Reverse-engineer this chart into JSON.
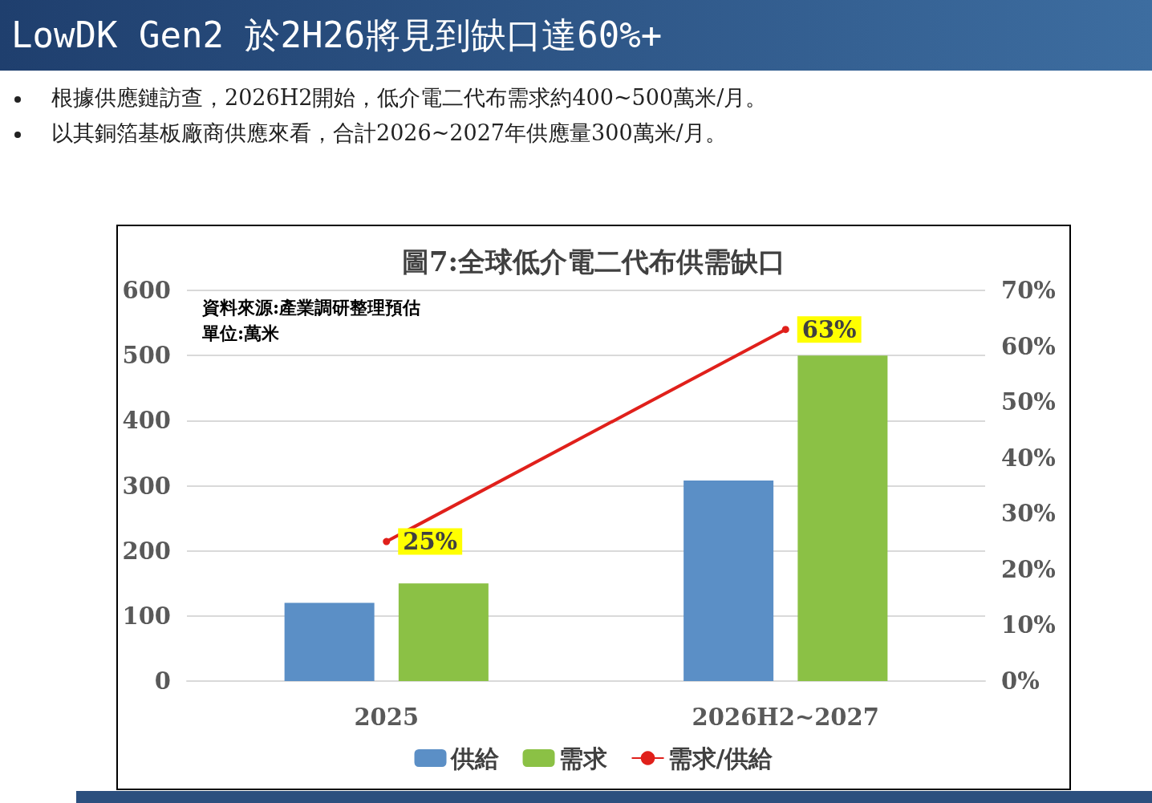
{
  "chart_data": {
    "type": "bar",
    "title": "圖7:全球低介電二代布供需缺口",
    "annotations": [
      "LowDK Gen2 於2H26將見到缺口達60%+",
      "根據供應鏈訪查，2026H2開始，低介電二代布需求約400~500萬米/月。",
      "以其銅箔基板廠商供應來看，合計2026~2027年供應量300萬米/月。",
      "資料來源:產業調研整理預估",
      "單位:萬米"
    ],
    "categories": [
      "2025",
      "2026H2~2027"
    ],
    "series": [
      {
        "name": "供給",
        "color": "#5b8fc6",
        "values": [
          120,
          308
        ]
      },
      {
        "name": "需求",
        "color": "#8bc145",
        "values": [
          150,
          500
        ]
      },
      {
        "name": "需求/供給",
        "type": "line",
        "axis": "y2",
        "color": "#e0201b",
        "values": [
          25,
          63
        ],
        "value_labels": [
          "25%",
          "63%"
        ]
      }
    ],
    "ylim": [
      0,
      600
    ],
    "yticks": [
      0,
      100,
      200,
      300,
      400,
      500,
      600
    ],
    "y2lim": [
      0,
      70
    ],
    "y2ticks": [
      {
        "value": 0,
        "label": "0%"
      },
      {
        "value": 10,
        "label": "10%"
      },
      {
        "value": 20,
        "label": "20%"
      },
      {
        "value": 30,
        "label": "30%"
      },
      {
        "value": 40,
        "label": "40%"
      },
      {
        "value": 50,
        "label": "50%"
      },
      {
        "value": 60,
        "label": "60%"
      },
      {
        "value": 70,
        "label": "70%"
      }
    ],
    "grid": "y",
    "legend": "bottom",
    "marker": "circle",
    "line_style": "solid"
  }
}
